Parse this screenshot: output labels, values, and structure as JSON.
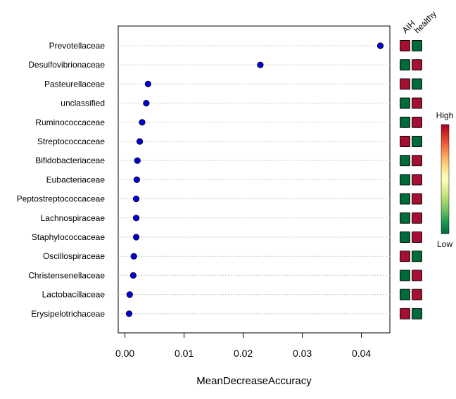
{
  "chart_data": {
    "type": "scatter",
    "title": "",
    "xlabel": "MeanDecreaseAccuracy",
    "ylabel": "",
    "xlim": [
      -0.0012,
      0.0445
    ],
    "xticks": [
      0.0,
      0.01,
      0.02,
      0.03,
      0.04
    ],
    "xtick_labels": [
      "0.00",
      "0.01",
      "0.02",
      "0.03",
      "0.04"
    ],
    "grid": "horizontal dotted",
    "marker_color": "#0000dd",
    "categories": [
      "Prevotellaceae",
      "Desulfovibrionaceae",
      "Pasteurellaceae",
      "unclassified",
      "Ruminococcaceae",
      "Streptococcaceae",
      "Bifidobacteriaceae",
      "Eubacteriaceae",
      "Peptostreptococcaceae",
      "Lachnospiraceae",
      "Staphylococcaceae",
      "Oscillospiraceae",
      "Christensenellaceae",
      "Lactobacillaceae",
      "Erysipelotrichaceae"
    ],
    "values": [
      0.0432,
      0.0229,
      0.0039,
      0.0036,
      0.0029,
      0.0025,
      0.0021,
      0.002,
      0.0019,
      0.0019,
      0.0019,
      0.0015,
      0.0014,
      0.0008,
      0.0007
    ],
    "heatmap": {
      "groups": [
        "AIH",
        "healthy"
      ],
      "levels": [
        [
          "High",
          "Low"
        ],
        [
          "Low",
          "High"
        ],
        [
          "High",
          "Low"
        ],
        [
          "Low",
          "High"
        ],
        [
          "Low",
          "High"
        ],
        [
          "High",
          "Low"
        ],
        [
          "Low",
          "High"
        ],
        [
          "Low",
          "High"
        ],
        [
          "Low",
          "High"
        ],
        [
          "Low",
          "High"
        ],
        [
          "Low",
          "High"
        ],
        [
          "High",
          "Low"
        ],
        [
          "Low",
          "High"
        ],
        [
          "Low",
          "High"
        ],
        [
          "High",
          "Low"
        ]
      ],
      "colors": {
        "High": "#a50f32",
        "Low": "#006a3b"
      }
    },
    "legend": {
      "high_label": "High",
      "low_label": "Low",
      "gradient": [
        "#a50026",
        "#d73027",
        "#f46d43",
        "#fdae61",
        "#fee08b",
        "#ffffbf",
        "#d9ef8b",
        "#a6d96a",
        "#66bd63",
        "#1a9850",
        "#006837"
      ],
      "placement": "right"
    }
  }
}
